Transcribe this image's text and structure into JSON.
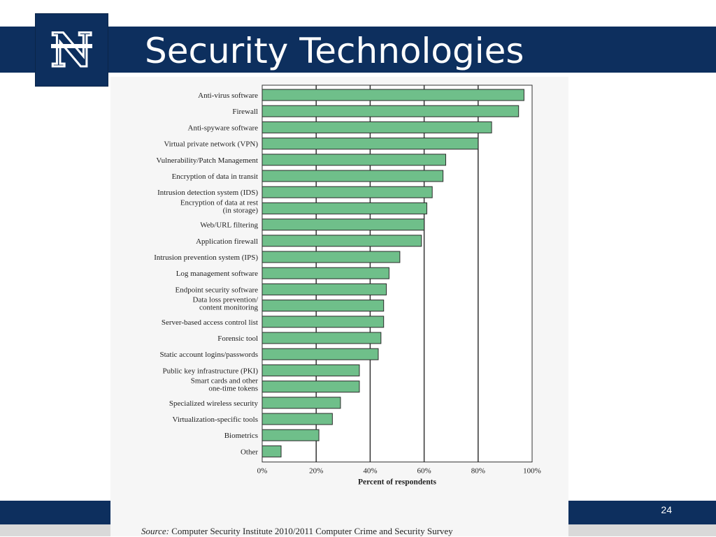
{
  "slide": {
    "title": "Security Technologies",
    "page_number": "24",
    "logo_letter": "N"
  },
  "source": {
    "label": "Source:",
    "text": "Computer Security Institute 2010/2011 Computer Crime and Security Survey"
  },
  "colors": {
    "band": "#0d2f5e",
    "bar_fill": "#6fbf8a",
    "bar_stroke": "#2b2b2b"
  },
  "chart_data": {
    "type": "bar",
    "orientation": "horizontal",
    "categories": [
      "Anti-virus software",
      "Firewall",
      "Anti-spyware software",
      "Virtual private network (VPN)",
      "Vulnerability/Patch Management",
      "Encryption of data in transit",
      "Intrusion detection system (IDS)",
      "Encryption of data at rest\n(in storage)",
      "Web/URL filtering",
      "Application firewall",
      "Intrusion prevention system (IPS)",
      "Log management software",
      "Endpoint security software",
      "Data loss prevention/\ncontent monitoring",
      "Server-based access control list",
      "Forensic tool",
      "Static account logins/passwords",
      "Public key infrastructure (PKI)",
      "Smart cards and other\none-time tokens",
      "Specialized wireless security",
      "Virtualization-specific tools",
      "Biometrics",
      "Other"
    ],
    "values": [
      97,
      95,
      85,
      80,
      68,
      67,
      63,
      61,
      60,
      59,
      51,
      47,
      46,
      45,
      45,
      44,
      43,
      36,
      36,
      29,
      26,
      21,
      7
    ],
    "xlabel": "Percent of respondents",
    "xlim": [
      0,
      100
    ],
    "xticks": [
      "0%",
      "20%",
      "40%",
      "60%",
      "80%",
      "100%"
    ],
    "grid": "vertical"
  }
}
